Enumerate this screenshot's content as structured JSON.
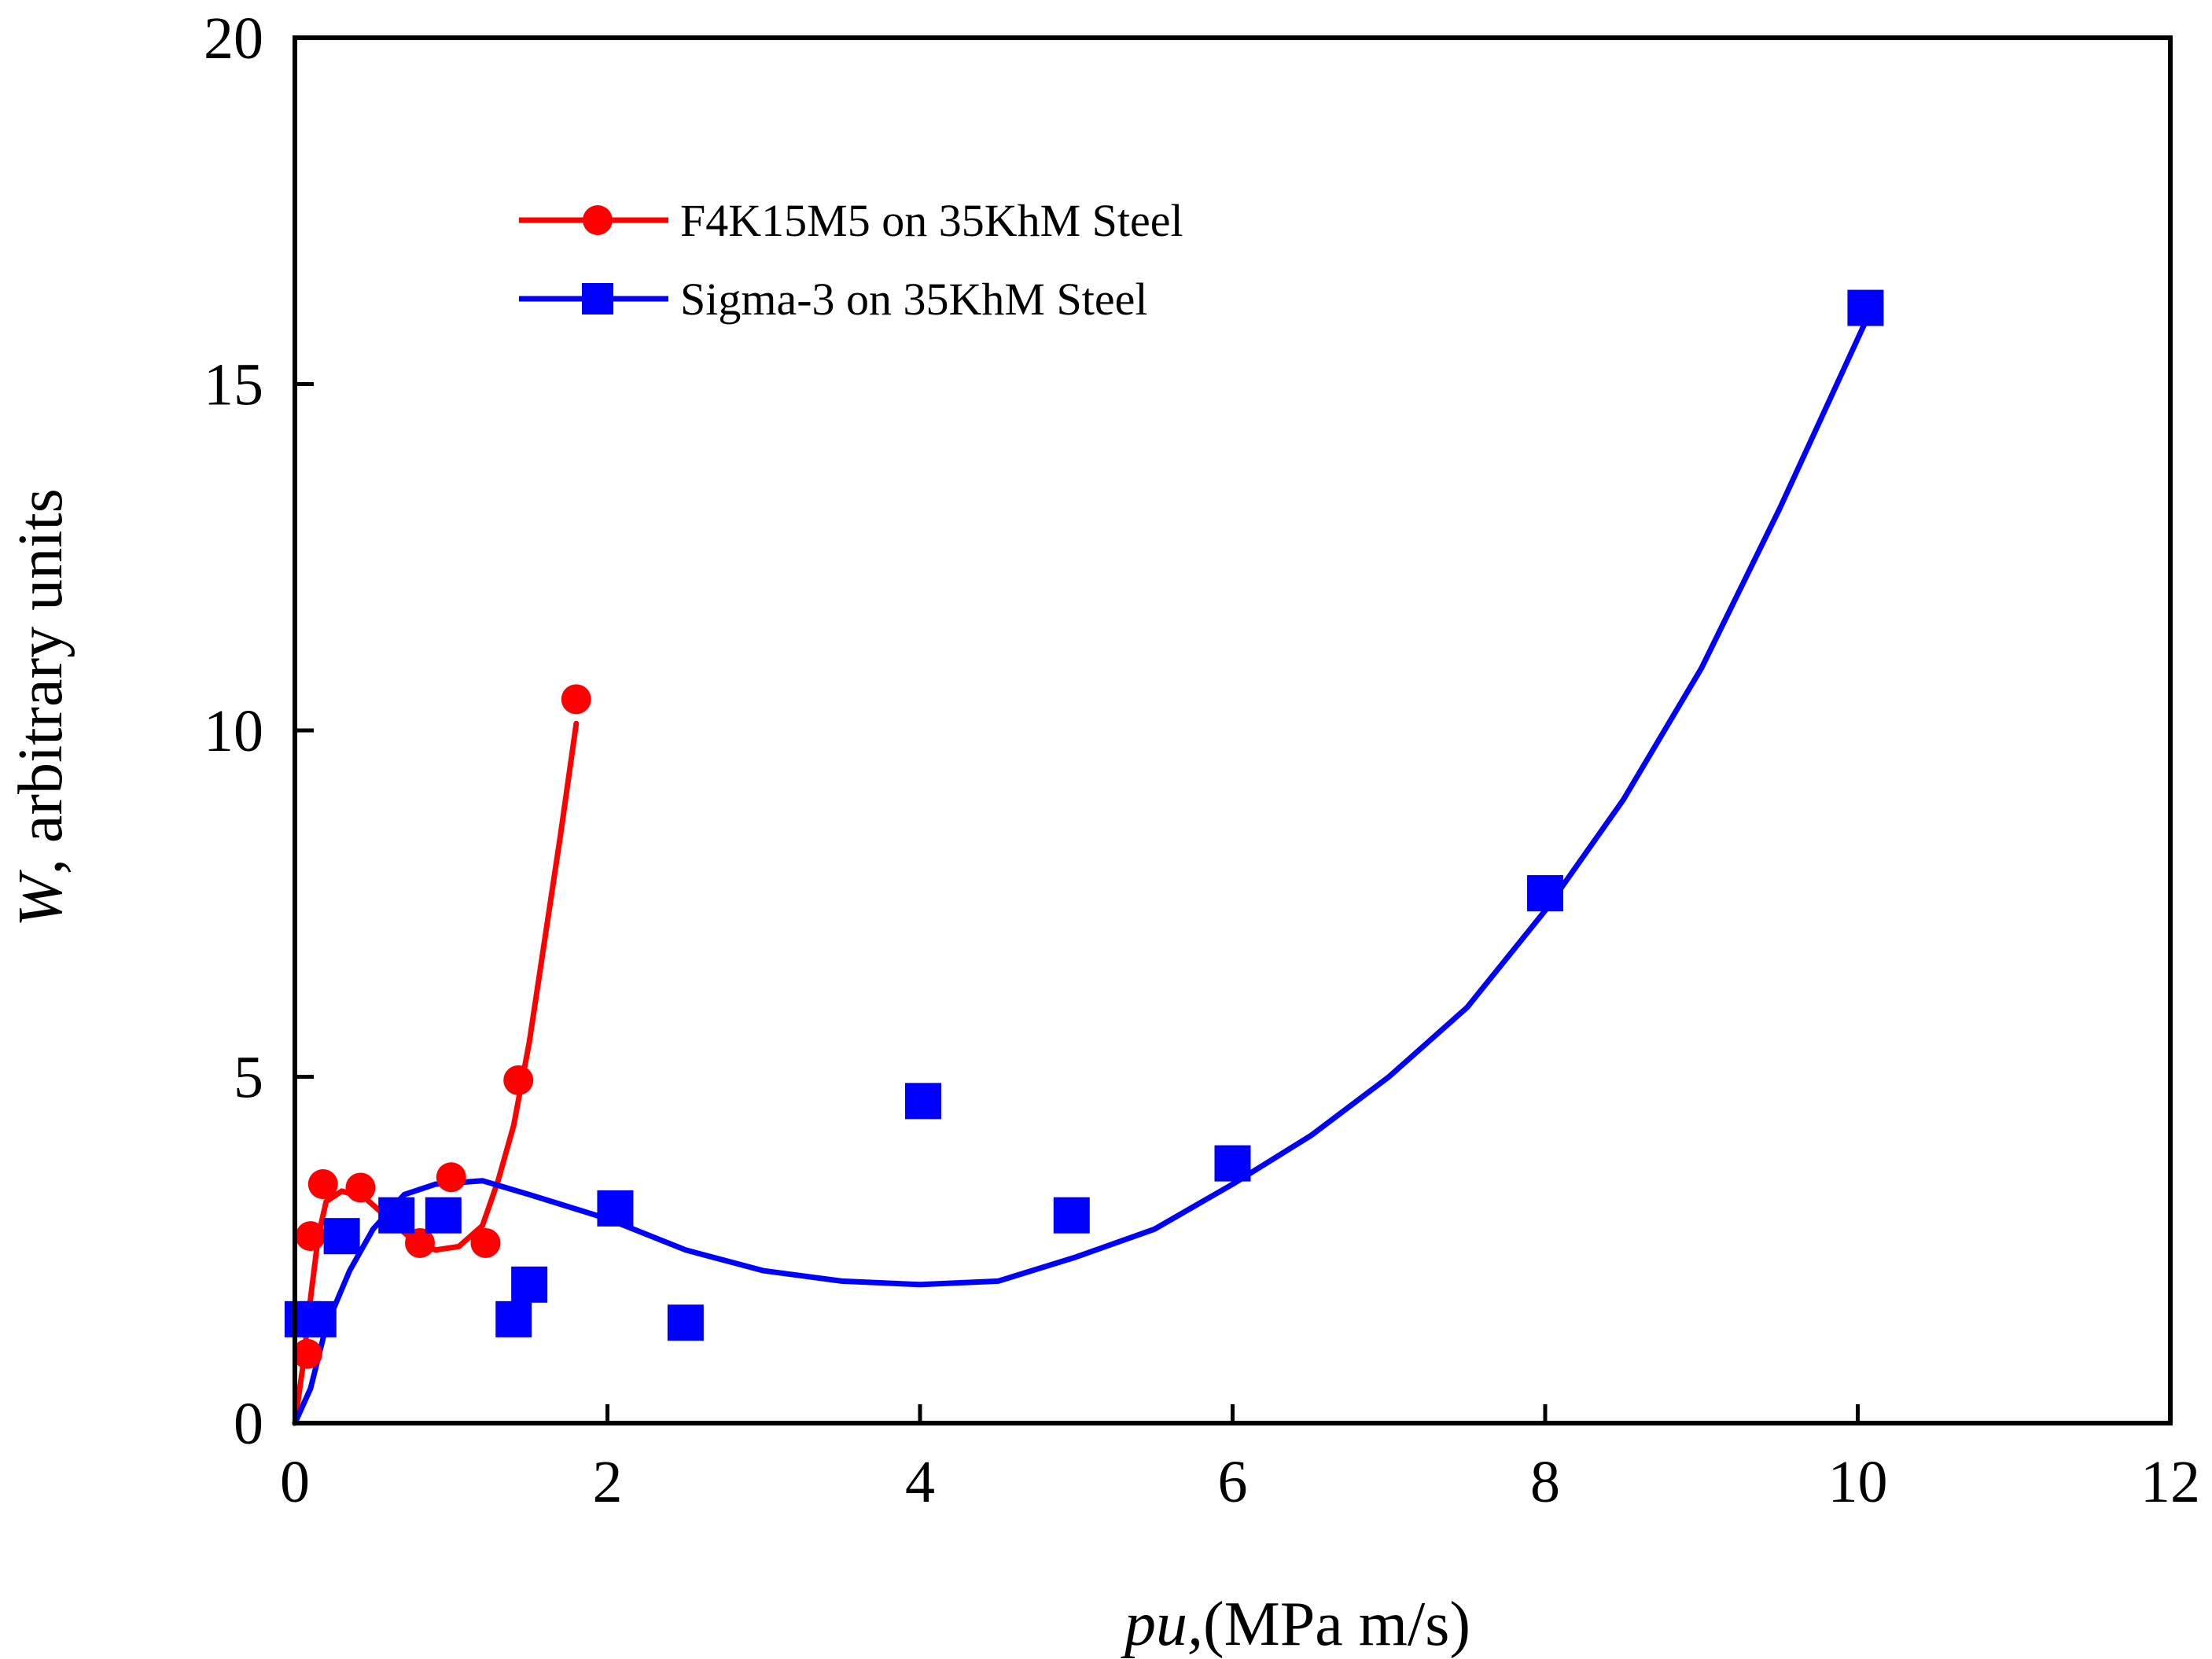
{
  "chart_data": {
    "type": "scatter",
    "title": "",
    "xlabel_italic": "pu,",
    "xlabel_rest": "(MPa m/s)",
    "ylabel_italic": "W",
    "ylabel_rest": ", arbitrary units",
    "xlim": [
      0,
      12
    ],
    "ylim": [
      0,
      20
    ],
    "x_ticks": [
      0,
      2,
      4,
      6,
      8,
      10,
      12
    ],
    "y_ticks": [
      0,
      5,
      10,
      15,
      20
    ],
    "grid": false,
    "legend_position": "top-left",
    "series": [
      {
        "name": "F4K15M5 on 35KhM Steel",
        "color": "#ff0000",
        "marker": "circle",
        "points": [
          {
            "x": 0.08,
            "y": 1.0
          },
          {
            "x": 0.1,
            "y": 2.7
          },
          {
            "x": 0.15,
            "y": 1.5
          },
          {
            "x": 0.18,
            "y": 3.45
          },
          {
            "x": 0.42,
            "y": 3.4
          },
          {
            "x": 0.8,
            "y": 2.6
          },
          {
            "x": 1.0,
            "y": 3.55
          },
          {
            "x": 1.22,
            "y": 2.6
          },
          {
            "x": 1.43,
            "y": 4.95
          },
          {
            "x": 1.8,
            "y": 10.45
          }
        ],
        "fit_curve": [
          [
            0.0,
            0.0
          ],
          [
            0.05,
            0.8
          ],
          [
            0.1,
            1.8
          ],
          [
            0.15,
            2.7
          ],
          [
            0.2,
            3.2
          ],
          [
            0.3,
            3.35
          ],
          [
            0.45,
            3.25
          ],
          [
            0.6,
            2.95
          ],
          [
            0.75,
            2.65
          ],
          [
            0.9,
            2.5
          ],
          [
            1.05,
            2.55
          ],
          [
            1.2,
            2.85
          ],
          [
            1.3,
            3.5
          ],
          [
            1.4,
            4.3
          ],
          [
            1.5,
            5.5
          ],
          [
            1.6,
            7.0
          ],
          [
            1.7,
            8.5
          ],
          [
            1.8,
            10.1
          ]
        ]
      },
      {
        "name": "Sigma-3 on 35KhM Steel",
        "color": "#0000ff",
        "marker": "square",
        "points": [
          {
            "x": 0.05,
            "y": 1.5
          },
          {
            "x": 0.15,
            "y": 1.5
          },
          {
            "x": 0.3,
            "y": 2.7
          },
          {
            "x": 0.65,
            "y": 3.0
          },
          {
            "x": 0.95,
            "y": 3.0
          },
          {
            "x": 1.4,
            "y": 1.5
          },
          {
            "x": 1.5,
            "y": 2.0
          },
          {
            "x": 2.05,
            "y": 3.1
          },
          {
            "x": 2.5,
            "y": 1.45
          },
          {
            "x": 4.02,
            "y": 4.65
          },
          {
            "x": 4.97,
            "y": 3.0
          },
          {
            "x": 6.0,
            "y": 3.75
          },
          {
            "x": 8.0,
            "y": 7.65
          },
          {
            "x": 10.05,
            "y": 16.1
          }
        ],
        "fit_curve": [
          [
            0.0,
            0.0
          ],
          [
            0.1,
            0.5
          ],
          [
            0.2,
            1.4
          ],
          [
            0.35,
            2.2
          ],
          [
            0.5,
            2.8
          ],
          [
            0.7,
            3.3
          ],
          [
            0.9,
            3.45
          ],
          [
            1.2,
            3.5
          ],
          [
            1.5,
            3.3
          ],
          [
            2.0,
            2.95
          ],
          [
            2.5,
            2.5
          ],
          [
            3.0,
            2.2
          ],
          [
            3.5,
            2.05
          ],
          [
            4.0,
            2.0
          ],
          [
            4.5,
            2.05
          ],
          [
            5.0,
            2.4
          ],
          [
            5.5,
            2.8
          ],
          [
            6.0,
            3.45
          ],
          [
            6.5,
            4.15
          ],
          [
            7.0,
            5.0
          ],
          [
            7.5,
            6.0
          ],
          [
            8.0,
            7.4
          ],
          [
            8.5,
            9.0
          ],
          [
            9.0,
            10.9
          ],
          [
            9.5,
            13.2
          ],
          [
            10.05,
            15.9
          ]
        ]
      }
    ]
  }
}
